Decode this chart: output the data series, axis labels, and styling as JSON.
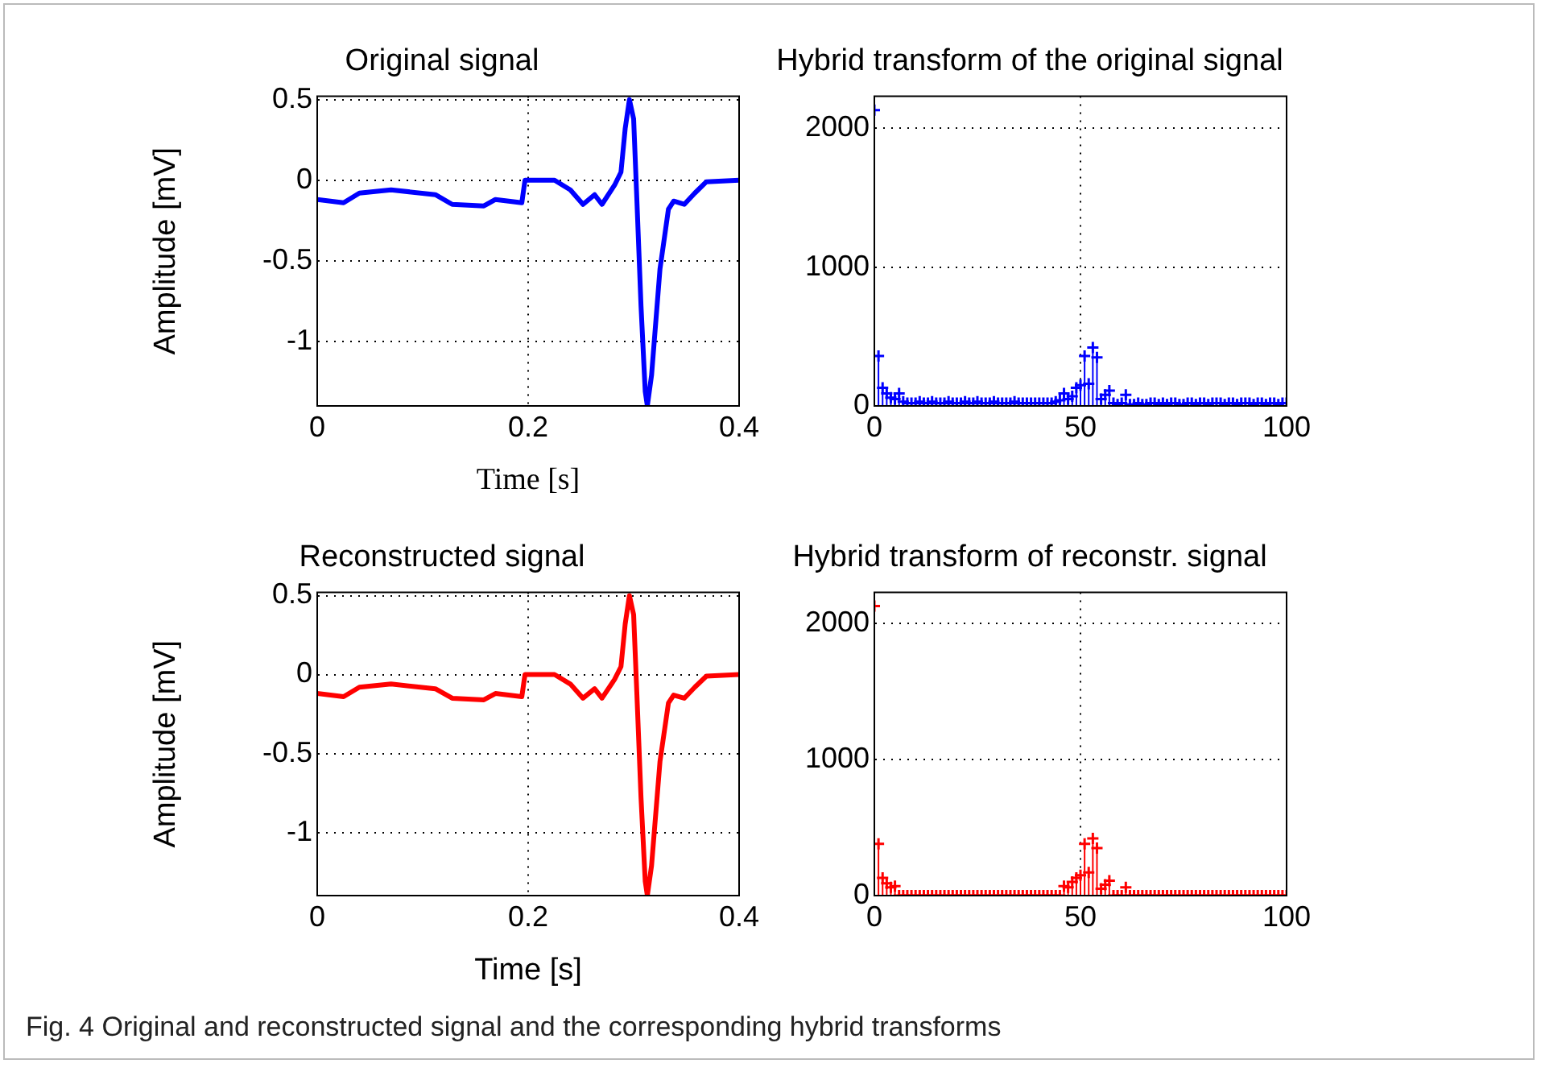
{
  "chart_data": [
    {
      "type": "line",
      "title": "Original signal",
      "xlabel": "Time [s]",
      "ylabel": "Amplitude [mV]",
      "color": "#0000ff",
      "grid": true,
      "xlim": [
        0,
        0.4
      ],
      "ylim": [
        -1.4,
        0.52
      ],
      "xticks": [
        0,
        0.2,
        0.4
      ],
      "yticks": [
        0.5,
        0,
        -0.5,
        -1
      ],
      "x": [
        0,
        0.025,
        0.04,
        0.07,
        0.112,
        0.128,
        0.158,
        0.169,
        0.194,
        0.197,
        0.225,
        0.24,
        0.252,
        0.263,
        0.27,
        0.282,
        0.288,
        0.292,
        0.296,
        0.3,
        0.303,
        0.307,
        0.311,
        0.313,
        0.317,
        0.325,
        0.333,
        0.338,
        0.348,
        0.358,
        0.369,
        0.4
      ],
      "values": [
        -0.12,
        -0.14,
        -0.08,
        -0.06,
        -0.09,
        -0.15,
        -0.16,
        -0.12,
        -0.14,
        0,
        0,
        -0.06,
        -0.15,
        -0.09,
        -0.15,
        -0.03,
        0.05,
        0.32,
        0.5,
        0.38,
        -0.11,
        -0.78,
        -1.31,
        -1.4,
        -1.21,
        -0.55,
        -0.18,
        -0.13,
        -0.15,
        -0.08,
        -0.01,
        0
      ]
    },
    {
      "type": "lollipop",
      "title": "Hybrid transform of the original signal",
      "color": "#0000ff",
      "marker": "cross",
      "grid": true,
      "xlim": [
        0,
        100
      ],
      "ylim": [
        0,
        2230
      ],
      "xticks": [
        0,
        50,
        100
      ],
      "yticks": [
        0,
        1000,
        2000
      ],
      "x": [
        0,
        1,
        2,
        3,
        4,
        5,
        6,
        7,
        8,
        9,
        10,
        11,
        12,
        13,
        14,
        15,
        16,
        17,
        18,
        19,
        20,
        21,
        22,
        23,
        24,
        25,
        26,
        27,
        28,
        29,
        30,
        31,
        32,
        33,
        34,
        35,
        36,
        37,
        38,
        39,
        40,
        41,
        42,
        43,
        44,
        45,
        46,
        47,
        48,
        49,
        50,
        51,
        52,
        53,
        54,
        55,
        56,
        57,
        58,
        59,
        60,
        61,
        62,
        63,
        64,
        65,
        66,
        67,
        68,
        69,
        70,
        71,
        72,
        73,
        74,
        75,
        76,
        77,
        78,
        79,
        80,
        81,
        82,
        83,
        84,
        85,
        86,
        87,
        88,
        89,
        90,
        91,
        92,
        93,
        94,
        95,
        96,
        97,
        98,
        99,
        100
      ],
      "values": [
        2130,
        360,
        130,
        90,
        60,
        50,
        90,
        30,
        20,
        20,
        20,
        30,
        20,
        20,
        30,
        20,
        20,
        20,
        30,
        20,
        20,
        20,
        30,
        20,
        20,
        30,
        20,
        20,
        20,
        30,
        20,
        20,
        20,
        20,
        30,
        20,
        20,
        20,
        20,
        20,
        20,
        20,
        20,
        20,
        30,
        40,
        90,
        50,
        70,
        130,
        150,
        360,
        160,
        420,
        350,
        50,
        80,
        110,
        20,
        10,
        20,
        80,
        10,
        10,
        20,
        10,
        10,
        20,
        20,
        10,
        20,
        10,
        20,
        20,
        10,
        10,
        20,
        20,
        10,
        20,
        20,
        10,
        20,
        20,
        20,
        10,
        20,
        20,
        10,
        20,
        20,
        20,
        10,
        20,
        20,
        10,
        20,
        20,
        10,
        20,
        20
      ]
    },
    {
      "type": "line",
      "title": "Reconstructed signal",
      "xlabel": "Time [s]",
      "ylabel": "Amplitude [mV]",
      "color": "#ff0000",
      "grid": true,
      "xlim": [
        0,
        0.4
      ],
      "ylim": [
        -1.4,
        0.52
      ],
      "xticks": [
        0,
        0.2,
        0.4
      ],
      "yticks": [
        0.5,
        0,
        -0.5,
        -1
      ],
      "x": [
        0,
        0.025,
        0.04,
        0.07,
        0.112,
        0.128,
        0.158,
        0.169,
        0.194,
        0.197,
        0.225,
        0.24,
        0.252,
        0.263,
        0.27,
        0.282,
        0.288,
        0.292,
        0.296,
        0.3,
        0.303,
        0.307,
        0.311,
        0.313,
        0.317,
        0.325,
        0.333,
        0.338,
        0.348,
        0.358,
        0.369,
        0.4
      ],
      "values": [
        -0.12,
        -0.14,
        -0.08,
        -0.06,
        -0.09,
        -0.15,
        -0.16,
        -0.12,
        -0.14,
        0,
        0,
        -0.06,
        -0.15,
        -0.09,
        -0.15,
        -0.03,
        0.05,
        0.32,
        0.5,
        0.38,
        -0.11,
        -0.78,
        -1.31,
        -1.4,
        -1.21,
        -0.55,
        -0.18,
        -0.13,
        -0.15,
        -0.08,
        -0.01,
        0
      ]
    },
    {
      "type": "lollipop",
      "title": "Hybrid transform of reconstr. signal",
      "color": "#ff0000",
      "marker": "cross",
      "grid": true,
      "xlim": [
        0,
        100
      ],
      "ylim": [
        0,
        2230
      ],
      "xticks": [
        0,
        50,
        100
      ],
      "yticks": [
        0,
        1000,
        2000
      ],
      "annotations": [
        "Fig. 4 Original and reconstructed signal and the corresponding hybrid transforms"
      ],
      "x": [
        0,
        1,
        2,
        3,
        4,
        5,
        6,
        7,
        8,
        9,
        10,
        11,
        12,
        13,
        14,
        15,
        16,
        17,
        18,
        19,
        20,
        21,
        22,
        23,
        24,
        25,
        26,
        27,
        28,
        29,
        30,
        31,
        32,
        33,
        34,
        35,
        36,
        37,
        38,
        39,
        40,
        41,
        42,
        43,
        44,
        45,
        46,
        47,
        48,
        49,
        50,
        51,
        52,
        53,
        54,
        55,
        56,
        57,
        58,
        59,
        60,
        61,
        62,
        63,
        64,
        65,
        66,
        67,
        68,
        69,
        70,
        71,
        72,
        73,
        74,
        75,
        76,
        77,
        78,
        79,
        80,
        81,
        82,
        83,
        84,
        85,
        86,
        87,
        88,
        89,
        90,
        91,
        92,
        93,
        94,
        95,
        96,
        97,
        98,
        99,
        100
      ],
      "values": [
        2130,
        380,
        130,
        90,
        60,
        70,
        0,
        0,
        0,
        0,
        0,
        0,
        0,
        0,
        0,
        0,
        0,
        0,
        0,
        0,
        0,
        0,
        0,
        0,
        0,
        0,
        0,
        0,
        0,
        0,
        0,
        0,
        0,
        0,
        0,
        0,
        0,
        0,
        0,
        0,
        0,
        0,
        0,
        0,
        0,
        0,
        70,
        60,
        100,
        130,
        150,
        380,
        170,
        420,
        350,
        50,
        80,
        110,
        0,
        0,
        0,
        60,
        0,
        0,
        0,
        0,
        0,
        0,
        0,
        0,
        0,
        0,
        0,
        0,
        0,
        0,
        0,
        0,
        0,
        0,
        0,
        0,
        0,
        0,
        0,
        0,
        0,
        0,
        0,
        0,
        0,
        0,
        0,
        0,
        0,
        0,
        0,
        0,
        0,
        0,
        0
      ]
    }
  ]
}
